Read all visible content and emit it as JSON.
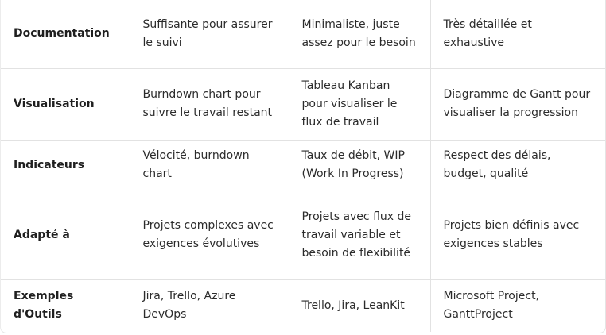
{
  "rows": [
    {
      "label": "Documentation",
      "cells": [
        "Suffisante pour assurer le suivi",
        "Minimaliste, juste assez pour le besoin",
        "Très détaillée et exhaustive"
      ]
    },
    {
      "label": "Visualisation",
      "cells": [
        "Burndown chart pour suivre le travail restant",
        "Tableau Kanban pour visualiser le flux de travail",
        "Diagramme de Gantt pour visualiser la progression"
      ]
    },
    {
      "label": "Indicateurs",
      "cells": [
        "Vélocité, burndown chart",
        "Taux de débit, WIP (Work In Progress)",
        "Respect des délais, budget, qualité"
      ]
    },
    {
      "label": "Adapté à",
      "cells": [
        "Projets complexes avec exigences évolutives",
        "Projets avec flux de travail variable et besoin de flexibilité",
        "Projets bien définis avec exigences stables"
      ]
    },
    {
      "label": "Exemples d'Outils",
      "cells": [
        "Jira, Trello, Azure DevOps",
        "Trello, Jira, LeanKit",
        "Microsoft Project, GanttProject"
      ]
    }
  ]
}
